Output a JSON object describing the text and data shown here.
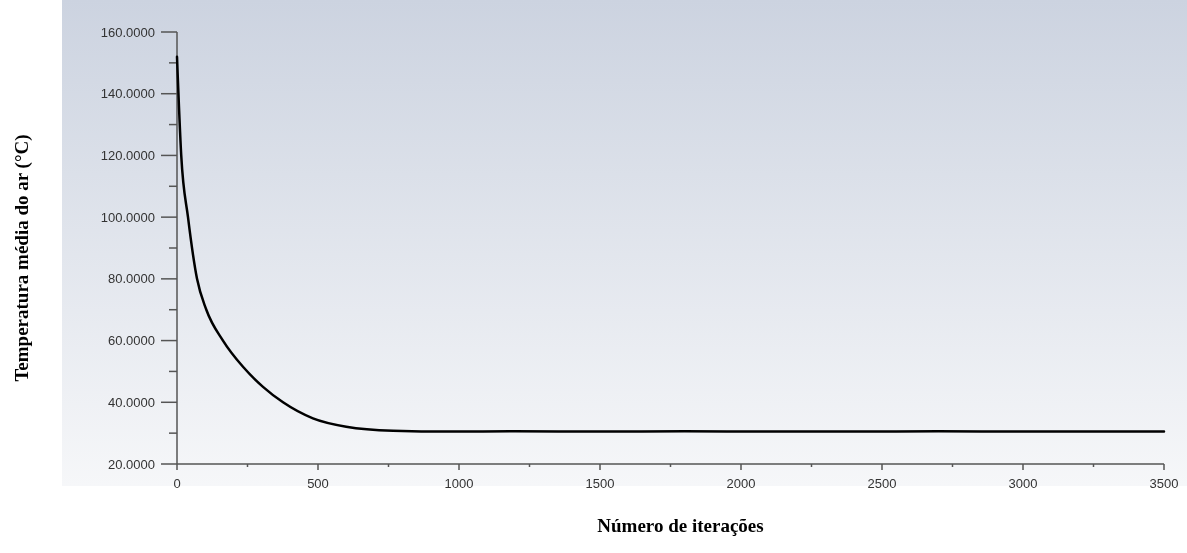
{
  "chart_data": {
    "type": "line",
    "xlabel": "Número de iterações",
    "ylabel": "Temperatura média do ar (°C)",
    "xlim": [
      0,
      3500
    ],
    "xticks": [
      0,
      500,
      1000,
      1500,
      2000,
      2500,
      3000,
      3500
    ],
    "ylim": [
      20,
      160
    ],
    "yticks": [
      {
        "value": 20,
        "label": "20.0000"
      },
      {
        "value": 40,
        "label": "40.0000"
      },
      {
        "value": 60,
        "label": "60.0000"
      },
      {
        "value": 80,
        "label": "80.0000"
      },
      {
        "value": 100,
        "label": "100.0000"
      },
      {
        "value": 120,
        "label": "120.0000"
      },
      {
        "value": 140,
        "label": "140.0000"
      },
      {
        "value": 160,
        "label": "160.0000"
      }
    ],
    "grid": false,
    "marker": "none",
    "line_style": "solid",
    "series": [
      {
        "color": "#000000",
        "x": [
          0,
          15,
          39,
          71,
          104,
          163,
          234,
          305,
          376,
          482,
          600,
          766,
          967,
          1200,
          1500,
          1800,
          2100,
          2400,
          2700,
          3000,
          3300,
          3500
        ],
        "values": [
          152,
          120,
          100,
          80,
          70,
          60,
          51.5,
          45,
          40,
          34.8,
          32.1,
          30.8,
          30.5,
          30.6,
          30.5,
          30.6,
          30.5,
          30.5,
          30.6,
          30.5,
          30.5,
          30.5
        ]
      }
    ]
  }
}
